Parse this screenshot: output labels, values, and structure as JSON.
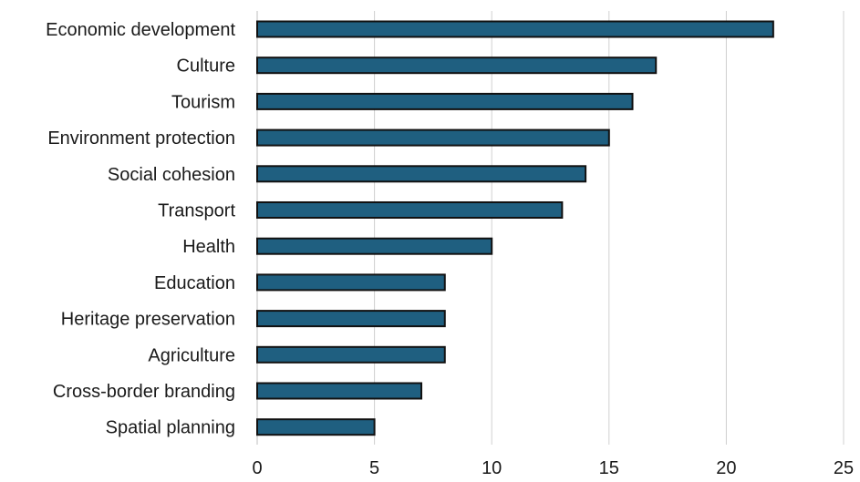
{
  "chart_data": {
    "type": "bar",
    "orientation": "horizontal",
    "categories": [
      "Economic development",
      "Culture",
      "Tourism",
      "Environment protection",
      "Social cohesion",
      "Transport",
      "Health",
      "Education",
      "Heritage preservation",
      "Agriculture",
      "Cross-border branding",
      "Spatial planning"
    ],
    "values": [
      22,
      17,
      16,
      15,
      14,
      13,
      10,
      8,
      8,
      8,
      7,
      5
    ],
    "xlim": [
      0,
      25
    ],
    "xticks": [
      0,
      5,
      10,
      15,
      20,
      25
    ],
    "grid": "vertical",
    "legend": "none",
    "bar_color": "#1f5f80",
    "bar_edge_color": "#111111"
  }
}
